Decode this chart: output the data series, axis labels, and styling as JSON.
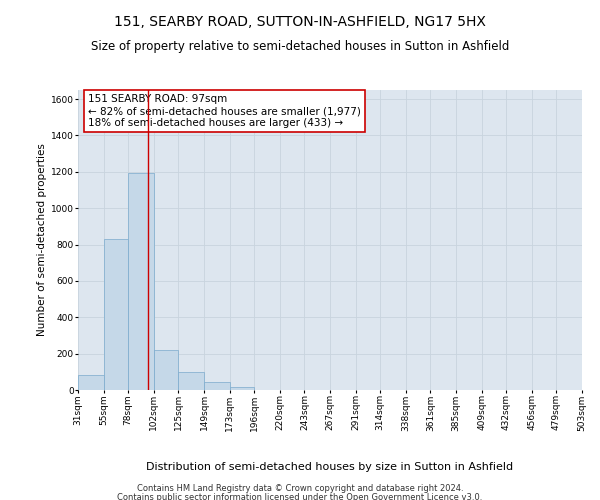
{
  "title": "151, SEARBY ROAD, SUTTON-IN-ASHFIELD, NG17 5HX",
  "subtitle": "Size of property relative to semi-detached houses in Sutton in Ashfield",
  "xlabel": "Distribution of semi-detached houses by size in Sutton in Ashfield",
  "ylabel": "Number of semi-detached properties",
  "footer_line1": "Contains HM Land Registry data © Crown copyright and database right 2024.",
  "footer_line2": "Contains public sector information licensed under the Open Government Licence v3.0.",
  "bar_edges": [
    31,
    55,
    78,
    102,
    125,
    149,
    173,
    196,
    220,
    243,
    267,
    291,
    314,
    338,
    361,
    385,
    409,
    432,
    456,
    479,
    503
  ],
  "bar_heights": [
    82,
    830,
    1195,
    220,
    100,
    42,
    18,
    0,
    0,
    0,
    0,
    0,
    0,
    0,
    0,
    0,
    0,
    0,
    0,
    0
  ],
  "bar_color": "#c5d8e8",
  "bar_edgecolor": "#7aaacc",
  "grid_color": "#c8d4de",
  "background_color": "#dde6ef",
  "fig_background_color": "#ffffff",
  "vline_x": 97,
  "vline_color": "#cc0000",
  "annotation_text": "151 SEARBY ROAD: 97sqm\n← 82% of semi-detached houses are smaller (1,977)\n18% of semi-detached houses are larger (433) →",
  "annotation_box_facecolor": "#ffffff",
  "annotation_box_edgecolor": "#cc0000",
  "ylim": [
    0,
    1650
  ],
  "yticks": [
    0,
    200,
    400,
    600,
    800,
    1000,
    1200,
    1400,
    1600
  ],
  "title_fontsize": 10,
  "subtitle_fontsize": 8.5,
  "xlabel_fontsize": 8,
  "ylabel_fontsize": 7.5,
  "annotation_fontsize": 7.5,
  "tick_fontsize": 6.5,
  "footer_fontsize": 6
}
